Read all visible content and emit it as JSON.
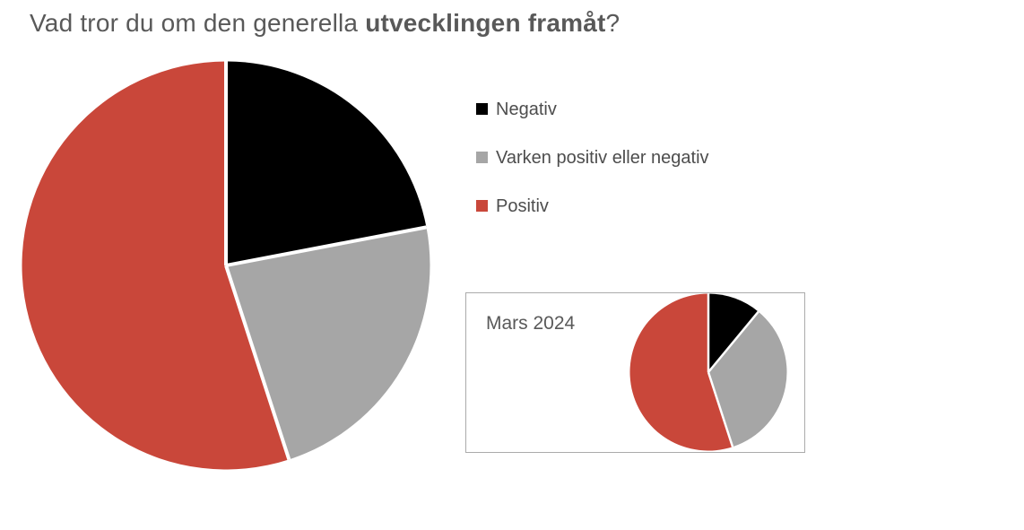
{
  "title": {
    "prefix": "Vad tror du om den generella ",
    "bold": "utvecklingen framåt",
    "suffix": "?"
  },
  "legend": {
    "position": "right",
    "items": [
      {
        "label": "Negativ",
        "color": "#000000"
      },
      {
        "label": "Varken positiv eller negativ",
        "color": "#a6a6a6"
      },
      {
        "label": "Positiv",
        "color": "#c9473a"
      }
    ]
  },
  "inset": {
    "title": "Mars 2024"
  },
  "chart_data": [
    {
      "type": "pie",
      "name": "main-pie-current-survey",
      "title": "Vad tror du om den generella utvecklingen framåt?",
      "categories": [
        "Negativ",
        "Varken positiv eller negativ",
        "Positiv"
      ],
      "values": [
        22,
        23,
        55
      ],
      "unit": "percent",
      "colors": [
        "#000000",
        "#a6a6a6",
        "#c9473a"
      ],
      "slice_ids": [
        "negativ",
        "varken-positiv-eller-negativ",
        "positiv"
      ],
      "start_angle_deg": 0,
      "direction": "clockwise",
      "legend_position": "right"
    },
    {
      "type": "pie",
      "name": "inset-pie-mars-2024",
      "title": "Mars 2024",
      "categories": [
        "Negativ",
        "Varken positiv eller negativ",
        "Positiv"
      ],
      "values": [
        11,
        34,
        55
      ],
      "unit": "percent",
      "colors": [
        "#000000",
        "#a6a6a6",
        "#c9473a"
      ],
      "slice_ids": [
        "negativ",
        "varken-positiv-eller-negativ",
        "positiv"
      ],
      "start_angle_deg": 0,
      "direction": "clockwise",
      "legend_position": "none"
    }
  ]
}
